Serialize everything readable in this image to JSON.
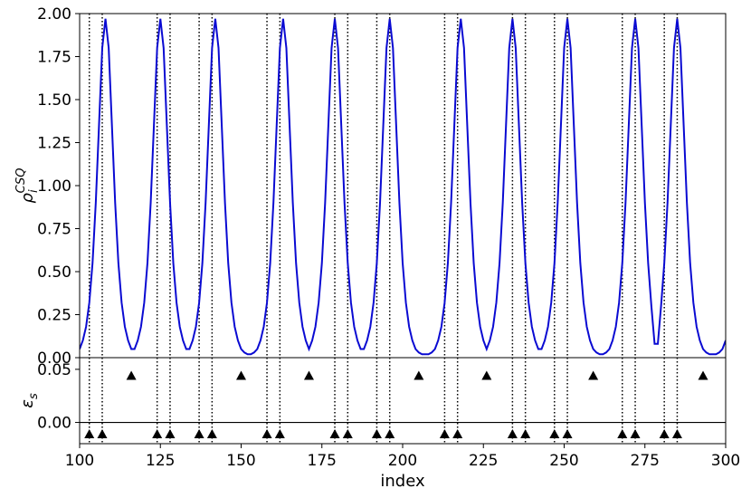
{
  "chart_data": [
    {
      "type": "line",
      "color": "#0a0ad2",
      "ylabel": {
        "base": "ρ",
        "sub": "i",
        "sup": "CSQ"
      },
      "xlim": [
        100,
        300
      ],
      "ylim": [
        0,
        2
      ],
      "yticks": [
        {
          "value": 0,
          "label": "0.00"
        },
        {
          "value": 0.25,
          "label": "0.25"
        },
        {
          "value": 0.5,
          "label": "0.50"
        },
        {
          "value": 0.75,
          "label": "0.75"
        },
        {
          "value": 1,
          "label": "1.00"
        },
        {
          "value": 1.25,
          "label": "1.25"
        },
        {
          "value": 1.5,
          "label": "1.50"
        },
        {
          "value": 1.75,
          "label": "1.75"
        },
        {
          "value": 2,
          "label": "2.00"
        }
      ],
      "vlines": [
        103,
        107,
        124,
        128,
        137,
        141,
        158,
        162,
        179,
        183,
        192,
        196,
        213,
        217,
        234,
        238,
        247,
        251,
        268,
        272,
        281,
        285
      ],
      "x": [
        100,
        101,
        102,
        103,
        104,
        105,
        106,
        107,
        108,
        109,
        110,
        111,
        112,
        113,
        114,
        115,
        116,
        117,
        118,
        119,
        120,
        121,
        122,
        123,
        124,
        125,
        126,
        127,
        128,
        129,
        130,
        131,
        132,
        133,
        134,
        135,
        136,
        137,
        138,
        139,
        140,
        141,
        142,
        143,
        144,
        145,
        146,
        147,
        148,
        149,
        150,
        151,
        152,
        153,
        154,
        155,
        156,
        157,
        158,
        159,
        160,
        161,
        162,
        163,
        164,
        165,
        166,
        167,
        168,
        169,
        170,
        171,
        172,
        173,
        174,
        175,
        176,
        177,
        178,
        179,
        180,
        181,
        182,
        183,
        184,
        185,
        186,
        187,
        188,
        189,
        190,
        191,
        192,
        193,
        194,
        195,
        196,
        197,
        198,
        199,
        200,
        201,
        202,
        203,
        204,
        205,
        206,
        207,
        208,
        209,
        210,
        211,
        212,
        213,
        214,
        215,
        216,
        217,
        218,
        219,
        220,
        221,
        222,
        223,
        224,
        225,
        226,
        227,
        228,
        229,
        230,
        231,
        232,
        233,
        234,
        235,
        236,
        237,
        238,
        239,
        240,
        241,
        242,
        243,
        244,
        245,
        246,
        247,
        248,
        249,
        250,
        251,
        252,
        253,
        254,
        255,
        256,
        257,
        258,
        259,
        260,
        261,
        262,
        263,
        264,
        265,
        266,
        267,
        268,
        269,
        270,
        271,
        272,
        273,
        274,
        275,
        276,
        277,
        278,
        279,
        280,
        281,
        282,
        283,
        284,
        285,
        286,
        287,
        288,
        289,
        290,
        291,
        292,
        293,
        294,
        295,
        296,
        297,
        298,
        299,
        300
      ],
      "values": [
        0.05,
        0.1,
        0.18,
        0.32,
        0.55,
        0.9,
        1.35,
        1.8,
        1.97,
        1.8,
        1.35,
        0.9,
        0.55,
        0.32,
        0.18,
        0.1,
        0.05,
        0.05,
        0.1,
        0.18,
        0.32,
        0.55,
        0.9,
        1.35,
        1.8,
        1.97,
        1.8,
        1.35,
        0.9,
        0.55,
        0.32,
        0.18,
        0.1,
        0.05,
        0.05,
        0.1,
        0.18,
        0.32,
        0.55,
        0.9,
        1.35,
        1.8,
        1.97,
        1.8,
        1.35,
        0.9,
        0.55,
        0.32,
        0.18,
        0.1,
        0.05,
        0.03,
        0.02,
        0.02,
        0.03,
        0.05,
        0.1,
        0.18,
        0.32,
        0.55,
        0.9,
        1.35,
        1.8,
        1.97,
        1.8,
        1.35,
        0.9,
        0.55,
        0.32,
        0.18,
        0.1,
        0.05,
        0.1,
        0.18,
        0.32,
        0.55,
        0.9,
        1.35,
        1.8,
        1.97,
        1.8,
        1.35,
        0.9,
        0.55,
        0.32,
        0.18,
        0.1,
        0.05,
        0.05,
        0.1,
        0.18,
        0.32,
        0.55,
        0.9,
        1.35,
        1.8,
        1.97,
        1.8,
        1.35,
        0.9,
        0.55,
        0.32,
        0.18,
        0.1,
        0.05,
        0.03,
        0.02,
        0.02,
        0.02,
        0.03,
        0.05,
        0.1,
        0.18,
        0.32,
        0.55,
        0.9,
        1.35,
        1.8,
        1.97,
        1.8,
        1.35,
        0.9,
        0.55,
        0.32,
        0.18,
        0.1,
        0.05,
        0.1,
        0.18,
        0.32,
        0.55,
        0.9,
        1.35,
        1.8,
        1.97,
        1.8,
        1.35,
        0.9,
        0.55,
        0.32,
        0.18,
        0.1,
        0.05,
        0.05,
        0.1,
        0.18,
        0.32,
        0.55,
        0.9,
        1.35,
        1.8,
        1.97,
        1.8,
        1.35,
        0.9,
        0.55,
        0.32,
        0.18,
        0.1,
        0.05,
        0.03,
        0.02,
        0.02,
        0.03,
        0.05,
        0.1,
        0.18,
        0.32,
        0.55,
        0.9,
        1.35,
        1.8,
        1.97,
        1.8,
        1.35,
        0.9,
        0.55,
        0.3,
        0.08,
        0.08,
        0.3,
        0.55,
        0.9,
        1.35,
        1.8,
        1.97,
        1.8,
        1.35,
        0.9,
        0.55,
        0.32,
        0.18,
        0.1,
        0.05,
        0.03,
        0.02,
        0.02,
        0.02,
        0.03,
        0.05,
        0.1
      ]
    },
    {
      "type": "scatter",
      "color": "#000000",
      "ylabel": {
        "base": "ε",
        "sub": "s"
      },
      "xlabel": "index",
      "xlim": [
        100,
        300
      ],
      "ylim": [
        -0.02,
        0.061
      ],
      "xticks": [
        100,
        125,
        150,
        175,
        200,
        225,
        250,
        275,
        300
      ],
      "yticks": [
        {
          "value": 0,
          "label": "0.00"
        },
        {
          "value": 0.05,
          "label": "0.05"
        }
      ],
      "hline": 0,
      "vlines": [
        103,
        107,
        124,
        128,
        137,
        141,
        158,
        162,
        179,
        183,
        192,
        196,
        213,
        217,
        234,
        238,
        247,
        251,
        268,
        272,
        281,
        285
      ],
      "x": [
        116,
        150,
        171,
        205,
        226,
        259,
        293,
        103,
        107,
        124,
        128,
        137,
        141,
        158,
        162,
        179,
        183,
        192,
        196,
        213,
        217,
        234,
        238,
        247,
        251,
        268,
        272,
        281,
        285
      ],
      "values": [
        0.044,
        0.044,
        0.044,
        0.044,
        0.044,
        0.044,
        0.044,
        -0.011,
        -0.011,
        -0.011,
        -0.011,
        -0.011,
        -0.011,
        -0.011,
        -0.011,
        -0.011,
        -0.011,
        -0.011,
        -0.011,
        -0.011,
        -0.011,
        -0.011,
        -0.011,
        -0.011,
        -0.011,
        -0.011,
        -0.011,
        -0.011,
        -0.011
      ]
    }
  ]
}
